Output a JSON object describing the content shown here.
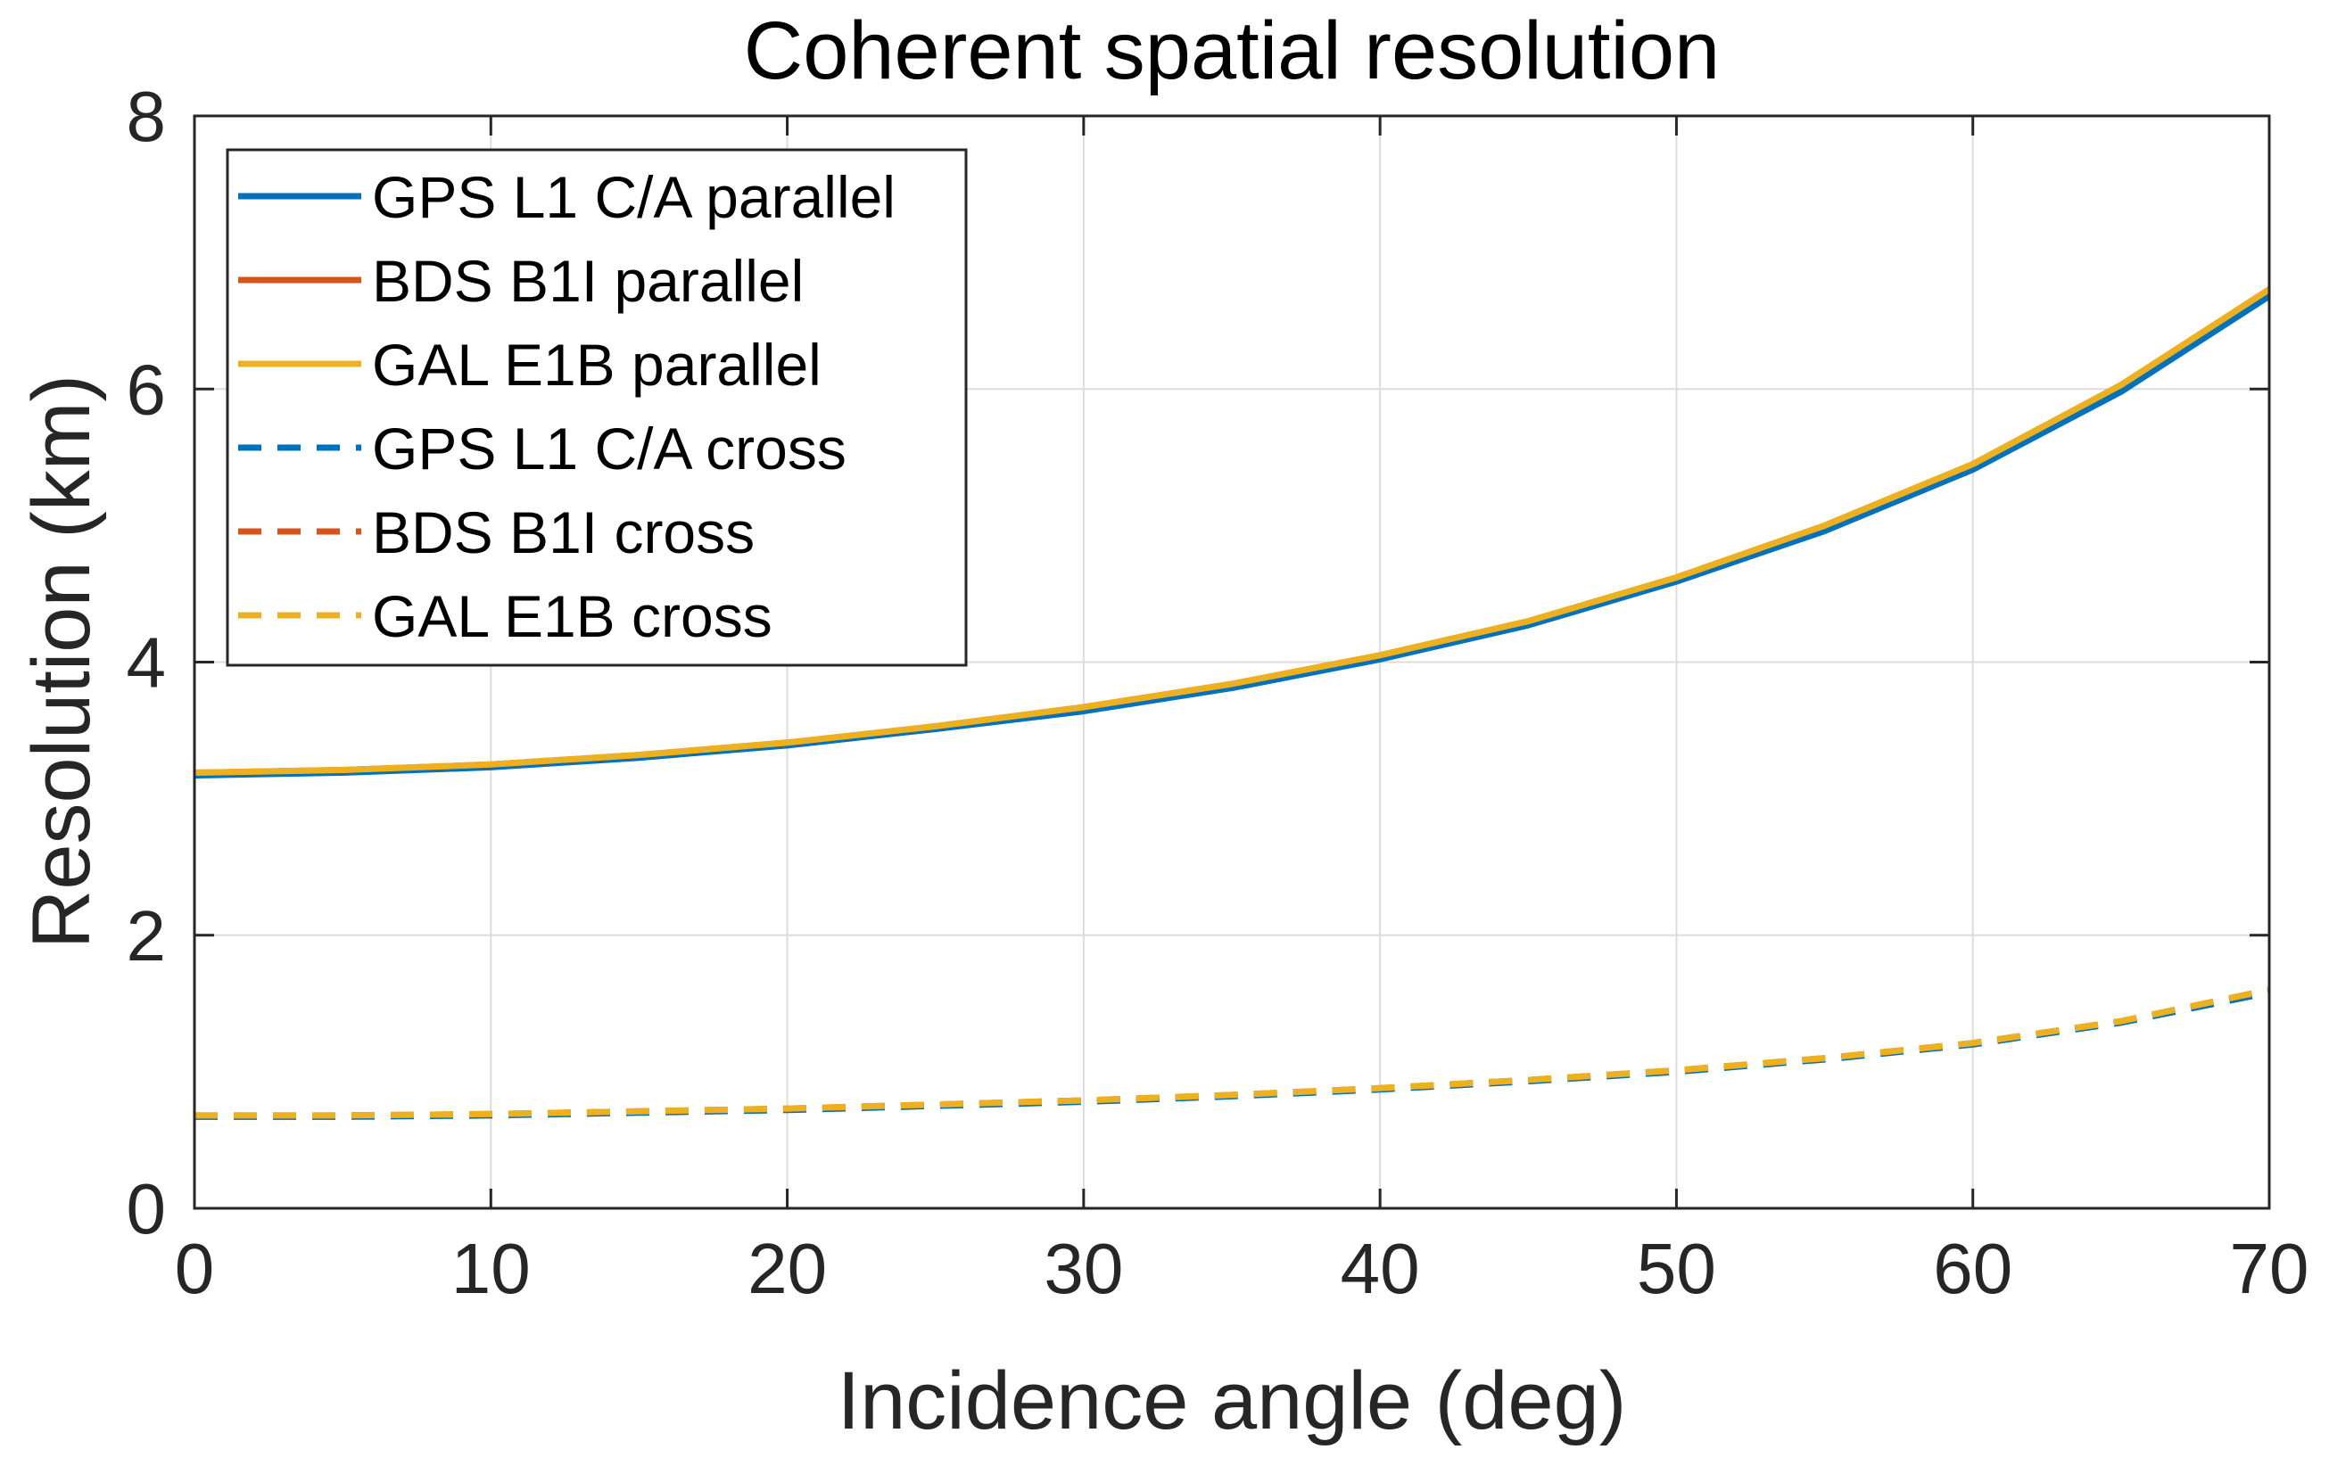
{
  "chart_data": {
    "type": "line",
    "title": "Coherent spatial resolution",
    "xlabel": "Incidence angle (deg)",
    "ylabel": "Resolution (km)",
    "xlim": [
      0,
      70
    ],
    "ylim": [
      0,
      8
    ],
    "xticks": [
      "0",
      "10",
      "20",
      "30",
      "40",
      "50",
      "60",
      "70"
    ],
    "yticks": [
      "0",
      "2",
      "4",
      "6",
      "8"
    ],
    "grid": true,
    "legend_position": "top-left",
    "x": [
      0,
      5,
      10,
      15,
      20,
      25,
      30,
      35,
      40,
      45,
      50,
      55,
      60,
      65,
      70
    ],
    "series": [
      {
        "name": "GPS L1 C/A parallel",
        "color": "#0072BD",
        "dash": "solid",
        "values": [
          3.17,
          3.19,
          3.23,
          3.3,
          3.39,
          3.51,
          3.64,
          3.81,
          4.02,
          4.27,
          4.59,
          4.96,
          5.41,
          5.98,
          6.68
        ]
      },
      {
        "name": "BDS B1I parallel",
        "color": "#D95319",
        "dash": "solid",
        "values": [
          3.19,
          3.21,
          3.25,
          3.32,
          3.41,
          3.53,
          3.67,
          3.84,
          4.05,
          4.3,
          4.62,
          5.0,
          5.45,
          6.03,
          6.73
        ]
      },
      {
        "name": "GAL E1B parallel",
        "color": "#EDB120",
        "dash": "solid",
        "values": [
          3.19,
          3.21,
          3.25,
          3.32,
          3.41,
          3.53,
          3.67,
          3.84,
          4.05,
          4.3,
          4.62,
          5.0,
          5.45,
          6.03,
          6.73
        ]
      },
      {
        "name": "GPS L1 C/A cross",
        "color": "#0072BD",
        "dash": "dashed",
        "values": [
          0.67,
          0.67,
          0.68,
          0.7,
          0.72,
          0.75,
          0.78,
          0.82,
          0.87,
          0.93,
          1.0,
          1.09,
          1.2,
          1.36,
          1.58
        ]
      },
      {
        "name": "BDS B1I cross",
        "color": "#D95319",
        "dash": "dashed",
        "values": [
          0.68,
          0.68,
          0.69,
          0.71,
          0.73,
          0.76,
          0.79,
          0.83,
          0.88,
          0.94,
          1.01,
          1.1,
          1.21,
          1.37,
          1.6
        ]
      },
      {
        "name": "GAL E1B cross",
        "color": "#EDB120",
        "dash": "dashed",
        "values": [
          0.68,
          0.68,
          0.69,
          0.71,
          0.73,
          0.76,
          0.79,
          0.83,
          0.88,
          0.94,
          1.01,
          1.1,
          1.21,
          1.37,
          1.6
        ]
      }
    ]
  }
}
